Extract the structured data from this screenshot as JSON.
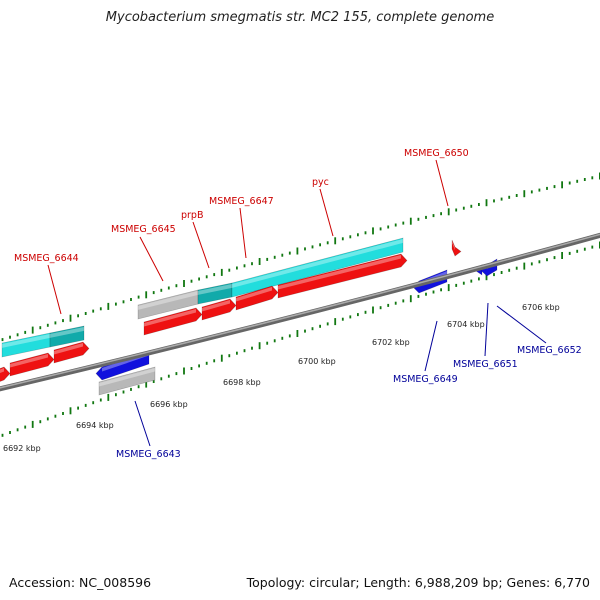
{
  "title": "Mycobacterium smegmatis str. MC2 155, complete genome",
  "footer": {
    "accession": "Accession: NC_008596",
    "topology": "Topology: circular; Length: 6,988,209 bp; Genes: 6,770"
  },
  "colors": {
    "forward_label": "#cc0000",
    "reverse_label": "#000099",
    "cds": "#ee1111",
    "gene_fwd": "#22dddd",
    "gene_fwd_dark": "#11aaaa",
    "gene_rev": "#1111dd",
    "pseudo": "#b8b8b8",
    "tick": "#117711",
    "backbone": "#777777"
  },
  "ticks": [
    {
      "label": "6692 kbp"
    },
    {
      "label": "6694 kbp"
    },
    {
      "label": "6696 kbp"
    },
    {
      "label": "6698 kbp"
    },
    {
      "label": "6700 kbp"
    },
    {
      "label": "6702 kbp"
    },
    {
      "label": "6704 kbp"
    },
    {
      "label": "6706 kbp"
    }
  ],
  "forward_labels": [
    {
      "text": "MSMEG_6644"
    },
    {
      "text": "MSMEG_6645"
    },
    {
      "text": "prpB"
    },
    {
      "text": "MSMEG_6647"
    },
    {
      "text": "pyc"
    },
    {
      "text": "MSMEG_6650"
    }
  ],
  "reverse_labels": [
    {
      "text": "MSMEG_6643"
    },
    {
      "text": "MSMEG_6649"
    },
    {
      "text": "MSMEG_6651"
    },
    {
      "text": "MSMEG_6652"
    }
  ]
}
